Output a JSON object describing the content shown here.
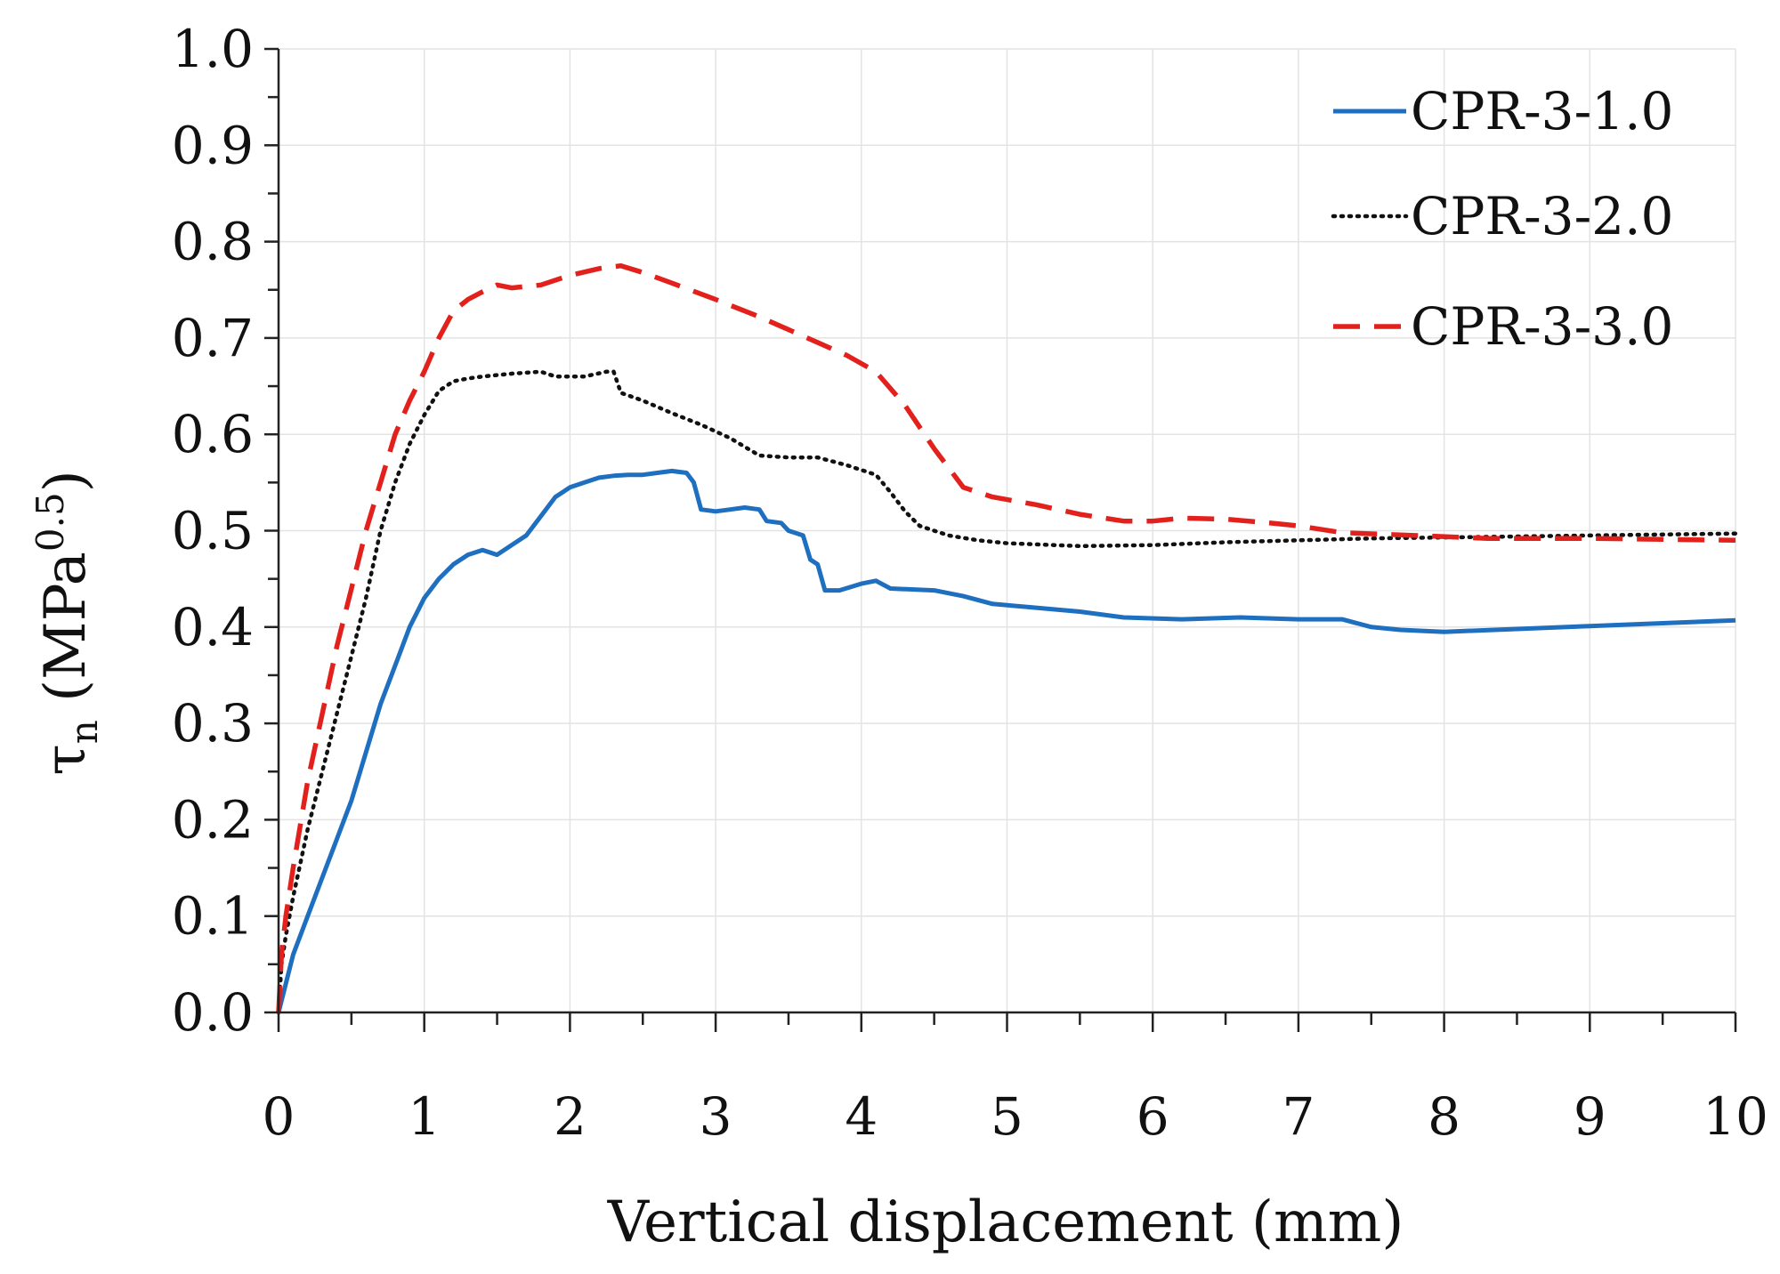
{
  "chart_data": {
    "type": "line",
    "xlabel": "Vertical displacement (mm)",
    "ylabel": {
      "symbol": "τ",
      "subscript": "n",
      "open": " (MPa",
      "superscript": "0.5",
      "close": ")"
    },
    "xlim": [
      0,
      10
    ],
    "ylim": [
      0,
      1.0
    ],
    "x_ticks": [
      "0",
      "1",
      "2",
      "3",
      "4",
      "5",
      "6",
      "7",
      "8",
      "9",
      "10"
    ],
    "y_ticks": [
      "0.0",
      "0.1",
      "0.2",
      "0.3",
      "0.4",
      "0.5",
      "0.6",
      "0.7",
      "0.8",
      "0.9",
      "1.0"
    ],
    "grid": true,
    "legend_position": "top-right",
    "series": [
      {
        "name": "CPR-3-1.0",
        "color": "#1f6fc0",
        "style": "solid",
        "points": [
          [
            0,
            0
          ],
          [
            0.05,
            0.03
          ],
          [
            0.1,
            0.06
          ],
          [
            0.2,
            0.1
          ],
          [
            0.3,
            0.14
          ],
          [
            0.4,
            0.18
          ],
          [
            0.5,
            0.22
          ],
          [
            0.6,
            0.27
          ],
          [
            0.7,
            0.32
          ],
          [
            0.8,
            0.36
          ],
          [
            0.9,
            0.4
          ],
          [
            1.0,
            0.43
          ],
          [
            1.1,
            0.45
          ],
          [
            1.2,
            0.465
          ],
          [
            1.3,
            0.475
          ],
          [
            1.4,
            0.48
          ],
          [
            1.5,
            0.475
          ],
          [
            1.6,
            0.485
          ],
          [
            1.7,
            0.495
          ],
          [
            1.8,
            0.515
          ],
          [
            1.9,
            0.535
          ],
          [
            2.0,
            0.545
          ],
          [
            2.1,
            0.55
          ],
          [
            2.2,
            0.555
          ],
          [
            2.3,
            0.557
          ],
          [
            2.4,
            0.558
          ],
          [
            2.5,
            0.558
          ],
          [
            2.6,
            0.56
          ],
          [
            2.7,
            0.562
          ],
          [
            2.8,
            0.56
          ],
          [
            2.85,
            0.55
          ],
          [
            2.9,
            0.522
          ],
          [
            3.0,
            0.52
          ],
          [
            3.1,
            0.522
          ],
          [
            3.2,
            0.524
          ],
          [
            3.3,
            0.522
          ],
          [
            3.35,
            0.51
          ],
          [
            3.45,
            0.508
          ],
          [
            3.5,
            0.5
          ],
          [
            3.6,
            0.495
          ],
          [
            3.65,
            0.47
          ],
          [
            3.7,
            0.465
          ],
          [
            3.75,
            0.438
          ],
          [
            3.85,
            0.438
          ],
          [
            4.0,
            0.445
          ],
          [
            4.1,
            0.448
          ],
          [
            4.2,
            0.44
          ],
          [
            4.5,
            0.438
          ],
          [
            4.7,
            0.432
          ],
          [
            4.9,
            0.424
          ],
          [
            5.2,
            0.42
          ],
          [
            5.5,
            0.416
          ],
          [
            5.8,
            0.41
          ],
          [
            6.2,
            0.408
          ],
          [
            6.6,
            0.41
          ],
          [
            7.0,
            0.408
          ],
          [
            7.3,
            0.408
          ],
          [
            7.5,
            0.4
          ],
          [
            7.7,
            0.397
          ],
          [
            8.0,
            0.395
          ],
          [
            8.5,
            0.398
          ],
          [
            9.0,
            0.401
          ],
          [
            9.5,
            0.404
          ],
          [
            10,
            0.407
          ]
        ]
      },
      {
        "name": "CPR-3-2.0",
        "color": "#111111",
        "style": "dotted",
        "points": [
          [
            0,
            0
          ],
          [
            0.02,
            0.05
          ],
          [
            0.05,
            0.08
          ],
          [
            0.1,
            0.12
          ],
          [
            0.2,
            0.19
          ],
          [
            0.3,
            0.25
          ],
          [
            0.4,
            0.31
          ],
          [
            0.5,
            0.37
          ],
          [
            0.6,
            0.43
          ],
          [
            0.7,
            0.5
          ],
          [
            0.8,
            0.55
          ],
          [
            0.9,
            0.59
          ],
          [
            1.0,
            0.62
          ],
          [
            1.1,
            0.645
          ],
          [
            1.2,
            0.655
          ],
          [
            1.3,
            0.658
          ],
          [
            1.4,
            0.66
          ],
          [
            1.6,
            0.663
          ],
          [
            1.8,
            0.665
          ],
          [
            1.9,
            0.66
          ],
          [
            2.1,
            0.66
          ],
          [
            2.25,
            0.665
          ],
          [
            2.3,
            0.665
          ],
          [
            2.35,
            0.643
          ],
          [
            2.5,
            0.635
          ],
          [
            2.7,
            0.622
          ],
          [
            2.9,
            0.61
          ],
          [
            3.1,
            0.596
          ],
          [
            3.3,
            0.578
          ],
          [
            3.5,
            0.576
          ],
          [
            3.7,
            0.576
          ],
          [
            3.9,
            0.568
          ],
          [
            4.1,
            0.558
          ],
          [
            4.2,
            0.54
          ],
          [
            4.3,
            0.52
          ],
          [
            4.4,
            0.505
          ],
          [
            4.6,
            0.495
          ],
          [
            4.8,
            0.49
          ],
          [
            5.0,
            0.487
          ],
          [
            5.5,
            0.484
          ],
          [
            6.0,
            0.485
          ],
          [
            6.5,
            0.488
          ],
          [
            7.0,
            0.49
          ],
          [
            7.5,
            0.492
          ],
          [
            8.0,
            0.493
          ],
          [
            9.0,
            0.495
          ],
          [
            10,
            0.497
          ]
        ]
      },
      {
        "name": "CPR-3-3.0",
        "color": "#e3211c",
        "style": "dashed",
        "points": [
          [
            0,
            0
          ],
          [
            0.02,
            0.06
          ],
          [
            0.05,
            0.1
          ],
          [
            0.1,
            0.15
          ],
          [
            0.2,
            0.24
          ],
          [
            0.3,
            0.31
          ],
          [
            0.4,
            0.38
          ],
          [
            0.5,
            0.44
          ],
          [
            0.6,
            0.5
          ],
          [
            0.7,
            0.55
          ],
          [
            0.8,
            0.6
          ],
          [
            0.9,
            0.635
          ],
          [
            1.0,
            0.665
          ],
          [
            1.1,
            0.7
          ],
          [
            1.2,
            0.728
          ],
          [
            1.3,
            0.74
          ],
          [
            1.4,
            0.748
          ],
          [
            1.5,
            0.755
          ],
          [
            1.6,
            0.752
          ],
          [
            1.8,
            0.755
          ],
          [
            2.0,
            0.765
          ],
          [
            2.2,
            0.772
          ],
          [
            2.35,
            0.775
          ],
          [
            2.5,
            0.768
          ],
          [
            2.7,
            0.757
          ],
          [
            3.0,
            0.74
          ],
          [
            3.3,
            0.722
          ],
          [
            3.6,
            0.702
          ],
          [
            3.9,
            0.682
          ],
          [
            4.1,
            0.665
          ],
          [
            4.3,
            0.63
          ],
          [
            4.5,
            0.585
          ],
          [
            4.7,
            0.545
          ],
          [
            4.9,
            0.535
          ],
          [
            5.2,
            0.527
          ],
          [
            5.5,
            0.517
          ],
          [
            5.8,
            0.51
          ],
          [
            6.0,
            0.51
          ],
          [
            6.2,
            0.513
          ],
          [
            6.5,
            0.512
          ],
          [
            6.8,
            0.508
          ],
          [
            7.0,
            0.505
          ],
          [
            7.3,
            0.498
          ],
          [
            7.8,
            0.495
          ],
          [
            8.3,
            0.492
          ],
          [
            9.0,
            0.492
          ],
          [
            10,
            0.49
          ]
        ]
      }
    ]
  }
}
